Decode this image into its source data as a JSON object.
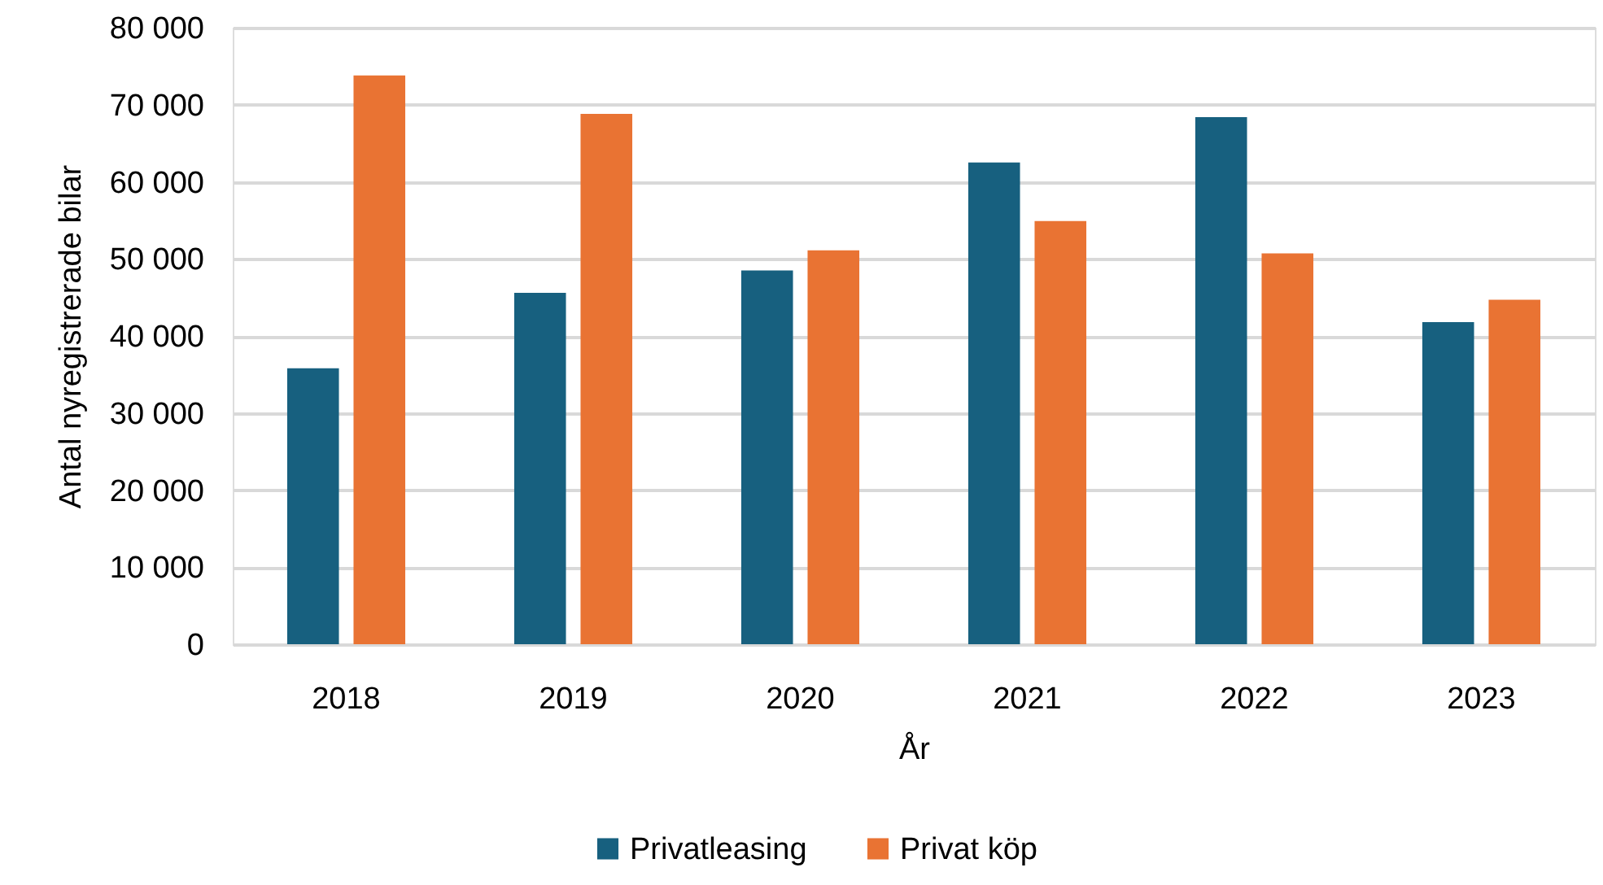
{
  "chart_data": {
    "type": "bar",
    "xlabel": "År",
    "ylabel": "Antal nyregistrerade bilar",
    "categories": [
      "2018",
      "2019",
      "2020",
      "2021",
      "2022",
      "2023"
    ],
    "series": [
      {
        "name": "Privatleasing",
        "color": "#17607f",
        "values": [
          35800,
          45600,
          48500,
          62500,
          68400,
          41800
        ]
      },
      {
        "name": "Privat köp",
        "color": "#e97333",
        "values": [
          73800,
          68800,
          51100,
          54900,
          50700,
          44700
        ]
      }
    ],
    "ylim": [
      0,
      80000
    ],
    "yticks": [
      {
        "value": 0,
        "label": "0"
      },
      {
        "value": 10000,
        "label": "10 000"
      },
      {
        "value": 20000,
        "label": "20 000"
      },
      {
        "value": 30000,
        "label": "30 000"
      },
      {
        "value": 40000,
        "label": "40 000"
      },
      {
        "value": 50000,
        "label": "50 000"
      },
      {
        "value": 60000,
        "label": "60 000"
      },
      {
        "value": 70000,
        "label": "70 000"
      },
      {
        "value": 80000,
        "label": "80 000"
      }
    ],
    "grid": "y",
    "legend": "bottom"
  }
}
